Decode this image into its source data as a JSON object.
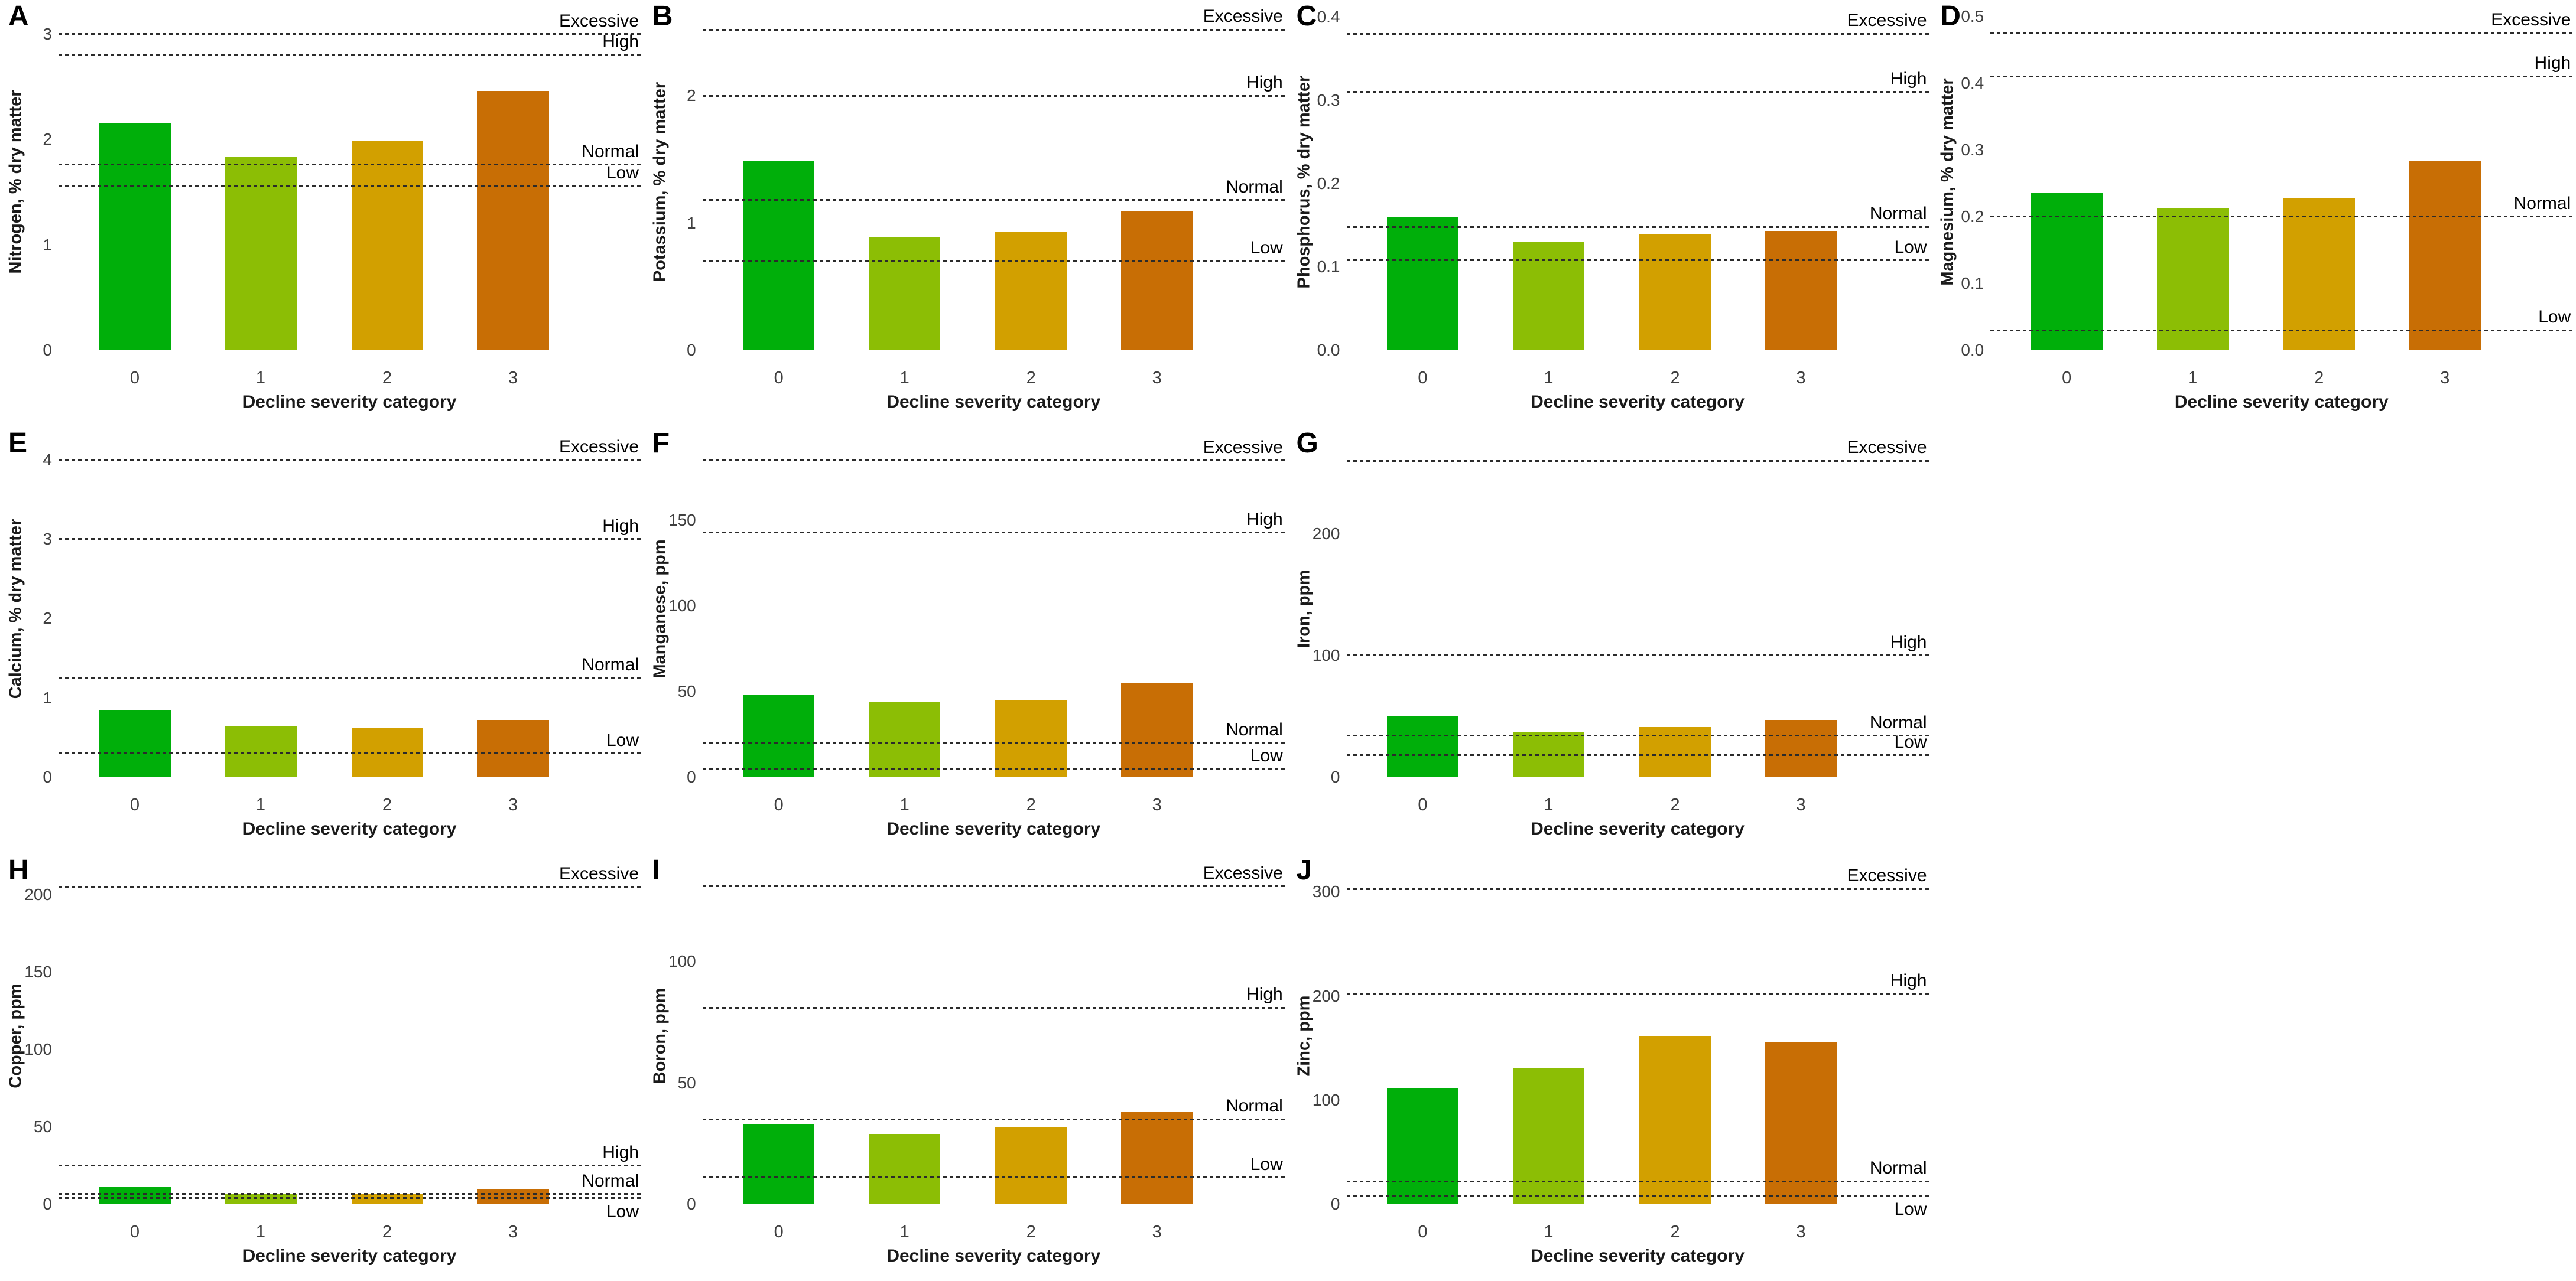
{
  "figure": {
    "background": "#ffffff",
    "x_axis_label": "Decline severity category",
    "categories": [
      "0",
      "1",
      "2",
      "3"
    ],
    "bar_colors": [
      "#00AF0A",
      "#8CBE05",
      "#D2A000",
      "#C86E05"
    ],
    "reference_labels": {
      "excessive": "Excessive",
      "high": "High",
      "normal": "Normal",
      "low": "Low"
    },
    "line_color": "#2b2b2b",
    "text_color": "#000000",
    "tick_color": "#404040"
  },
  "chart_data": [
    {
      "type": "bar",
      "panel": "A",
      "ylabel": "Nitrogen, % dry matter",
      "xlabel": "Decline severity category",
      "categories": [
        "0",
        "1",
        "2",
        "3"
      ],
      "values": [
        2.15,
        1.83,
        1.99,
        2.46
      ],
      "ylim": [
        0,
        3.2
      ],
      "yticks": [
        {
          "v": 0,
          "label": "0"
        },
        {
          "v": 1,
          "label": "1"
        },
        {
          "v": 2,
          "label": "2"
        },
        {
          "v": 3,
          "label": "3"
        }
      ],
      "ref_lines": {
        "excessive": 3.0,
        "high": 2.8,
        "normal": 1.76,
        "low": 1.56
      },
      "low_label_below": false
    },
    {
      "type": "bar",
      "panel": "B",
      "ylabel": "Potassium, % dry matter",
      "xlabel": "Decline severity category",
      "categories": [
        "0",
        "1",
        "2",
        "3"
      ],
      "values": [
        1.49,
        0.89,
        0.93,
        1.09
      ],
      "ylim": [
        0,
        2.65
      ],
      "yticks": [
        {
          "v": 0,
          "label": "0"
        },
        {
          "v": 1,
          "label": "1"
        },
        {
          "v": 2,
          "label": "2"
        }
      ],
      "ref_lines": {
        "excessive": 2.52,
        "high": 2.0,
        "normal": 1.18,
        "low": 0.7
      },
      "low_label_below": false
    },
    {
      "type": "bar",
      "panel": "C",
      "ylabel": "Phosphorus, % dry matter",
      "xlabel": "Decline severity category",
      "categories": [
        "0",
        "1",
        "2",
        "3"
      ],
      "values": [
        0.16,
        0.13,
        0.14,
        0.143
      ],
      "ylim": [
        0,
        0.405
      ],
      "yticks": [
        {
          "v": 0,
          "label": "0.0"
        },
        {
          "v": 0.1,
          "label": "0.1"
        },
        {
          "v": 0.2,
          "label": "0.2"
        },
        {
          "v": 0.3,
          "label": "0.3"
        },
        {
          "v": 0.4,
          "label": "0.4"
        }
      ],
      "ref_lines": {
        "excessive": 0.38,
        "high": 0.31,
        "normal": 0.148,
        "low": 0.108
      },
      "low_label_below": false
    },
    {
      "type": "bar",
      "panel": "D",
      "ylabel": "Magnesium, % dry matter",
      "xlabel": "Decline severity category",
      "categories": [
        "0",
        "1",
        "2",
        "3"
      ],
      "values": [
        0.235,
        0.212,
        0.228,
        0.284
      ],
      "ylim": [
        0,
        0.505
      ],
      "yticks": [
        {
          "v": 0,
          "label": "0.0"
        },
        {
          "v": 0.1,
          "label": "0.1"
        },
        {
          "v": 0.2,
          "label": "0.2"
        },
        {
          "v": 0.3,
          "label": "0.3"
        },
        {
          "v": 0.4,
          "label": "0.4"
        },
        {
          "v": 0.5,
          "label": "0.5"
        }
      ],
      "ref_lines": {
        "excessive": 0.475,
        "high": 0.41,
        "normal": 0.2,
        "low": 0.03
      },
      "low_label_below": false
    },
    {
      "type": "bar",
      "panel": "E",
      "ylabel": "Calcium, % dry matter",
      "xlabel": "Decline severity category",
      "categories": [
        "0",
        "1",
        "2",
        "3"
      ],
      "values": [
        0.85,
        0.65,
        0.62,
        0.72
      ],
      "ylim": [
        0,
        4.25
      ],
      "yticks": [
        {
          "v": 0,
          "label": "0"
        },
        {
          "v": 1,
          "label": "1"
        },
        {
          "v": 2,
          "label": "2"
        },
        {
          "v": 3,
          "label": "3"
        },
        {
          "v": 4,
          "label": "4"
        }
      ],
      "ref_lines": {
        "excessive": 4.0,
        "high": 3.0,
        "normal": 1.25,
        "low": 0.3
      },
      "low_label_below": false
    },
    {
      "type": "bar",
      "panel": "F",
      "ylabel": "Manganese, ppm",
      "xlabel": "Decline severity category",
      "categories": [
        "0",
        "1",
        "2",
        "3"
      ],
      "values": [
        48,
        44,
        45,
        55
      ],
      "ylim": [
        0,
        197
      ],
      "yticks": [
        {
          "v": 0,
          "label": "0"
        },
        {
          "v": 50,
          "label": "50"
        },
        {
          "v": 100,
          "label": "100"
        },
        {
          "v": 150,
          "label": "150"
        }
      ],
      "ref_lines": {
        "excessive": 185,
        "high": 143,
        "normal": 20,
        "low": 5
      },
      "low_label_below": false
    },
    {
      "type": "bar",
      "panel": "G",
      "ylabel": "Iron, ppm",
      "xlabel": "Decline severity category",
      "categories": [
        "0",
        "1",
        "2",
        "3"
      ],
      "values": [
        50,
        37,
        41,
        47
      ],
      "ylim": [
        0,
        277
      ],
      "yticks": [
        {
          "v": 0,
          "label": "0"
        },
        {
          "v": 100,
          "label": "100"
        },
        {
          "v": 200,
          "label": "200"
        }
      ],
      "ref_lines": {
        "excessive": 260,
        "high": 100,
        "normal": 34,
        "low": 18
      },
      "low_label_below": false
    },
    {
      "type": "bar",
      "panel": "H",
      "ylabel": "Copper, ppm",
      "xlabel": "Decline severity category",
      "categories": [
        "0",
        "1",
        "2",
        "3"
      ],
      "values": [
        11,
        6.5,
        7,
        10
      ],
      "ylim": [
        0,
        218
      ],
      "yticks": [
        {
          "v": 0,
          "label": "0"
        },
        {
          "v": 50,
          "label": "50"
        },
        {
          "v": 100,
          "label": "100"
        },
        {
          "v": 150,
          "label": "150"
        },
        {
          "v": 200,
          "label": "200"
        }
      ],
      "ref_lines": {
        "excessive": 205,
        "high": 25,
        "normal": 6.5,
        "low": 4
      },
      "low_label_below": true
    },
    {
      "type": "bar",
      "panel": "I",
      "ylabel": "Boron, ppm",
      "xlabel": "Decline severity category",
      "categories": [
        "0",
        "1",
        "2",
        "3"
      ],
      "values": [
        33,
        29,
        32,
        38
      ],
      "ylim": [
        0,
        139
      ],
      "yticks": [
        {
          "v": 0,
          "label": "0"
        },
        {
          "v": 50,
          "label": "50"
        },
        {
          "v": 100,
          "label": "100"
        }
      ],
      "ref_lines": {
        "excessive": 131,
        "high": 81,
        "normal": 35,
        "low": 11
      },
      "low_label_below": false
    },
    {
      "type": "bar",
      "panel": "J",
      "ylabel": "Zinc, ppm",
      "xlabel": "Decline severity category",
      "categories": [
        "0",
        "1",
        "2",
        "3"
      ],
      "values": [
        111,
        131,
        161,
        156
      ],
      "ylim": [
        0,
        324
      ],
      "yticks": [
        {
          "v": 0,
          "label": "0"
        },
        {
          "v": 100,
          "label": "100"
        },
        {
          "v": 200,
          "label": "200"
        },
        {
          "v": 300,
          "label": "300"
        }
      ],
      "ref_lines": {
        "excessive": 303,
        "high": 202,
        "normal": 22,
        "low": 8
      },
      "low_label_below": true
    }
  ]
}
